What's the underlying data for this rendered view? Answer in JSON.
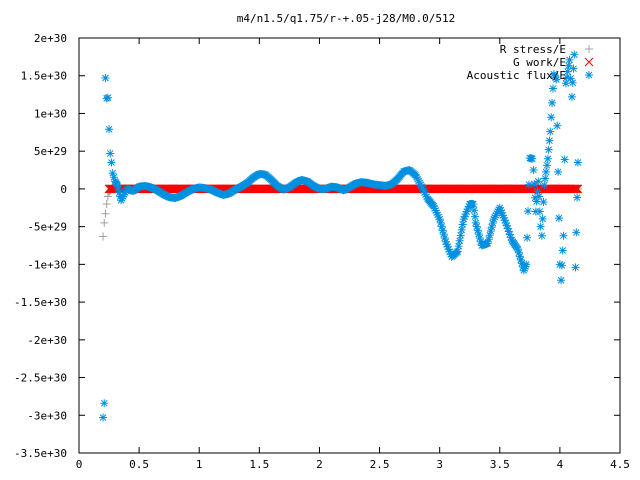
{
  "chart_data": {
    "type": "scatter",
    "title": "m4/n1.5/q1.75/r-+.05-j28/M0.0/512",
    "xlabel": "",
    "ylabel": "",
    "xlim": [
      0,
      4.5
    ],
    "ylim": [
      -3.5e+30,
      2e+30
    ],
    "x_ticks": [
      0,
      0.5,
      1,
      1.5,
      2,
      2.5,
      3,
      3.5,
      4,
      4.5
    ],
    "x_tick_labels": [
      "0",
      "0.5",
      "1",
      "1.5",
      "2",
      "2.5",
      "3",
      "3.5",
      "4",
      "4.5"
    ],
    "y_ticks": [
      2e+30,
      1.5e+30,
      1e+30,
      5e+29,
      0,
      -5e+29,
      -1e+30,
      -1.5e+30,
      -2e+30,
      -2.5e+30,
      -3e+30,
      -3.5e+30
    ],
    "y_tick_labels": [
      "2e+30",
      "1.5e+30",
      "1e+30",
      "5e+29",
      "0",
      "-5e+29",
      "-1e+30",
      "-1.5e+30",
      "-2e+30",
      "-2.5e+30",
      "-3e+30",
      "-3.5e+30"
    ],
    "grid": false,
    "legend_position": "top-right",
    "series": [
      {
        "name": "R stress/E",
        "marker": "+",
        "color": "#a0a0a0",
        "points": [
          [
            0.2,
            -6.3e+29
          ],
          [
            0.21,
            -4.5e+29
          ],
          [
            0.22,
            -3.3e+29
          ],
          [
            0.23,
            -2e+29
          ],
          [
            0.24,
            -1e+29
          ],
          [
            0.25,
            -4e+28
          ],
          [
            0.27,
            0
          ],
          [
            0.5,
            0
          ],
          [
            1.0,
            0
          ],
          [
            1.5,
            0
          ],
          [
            2.0,
            0
          ],
          [
            2.5,
            0
          ],
          [
            3.0,
            0
          ],
          [
            3.5,
            0
          ],
          [
            4.0,
            0
          ],
          [
            4.15,
            0
          ]
        ]
      },
      {
        "name": "G work/E",
        "marker": "x",
        "color": "#ff0000",
        "points": [
          [
            0.25,
            0
          ],
          [
            0.5,
            0
          ],
          [
            0.75,
            0
          ],
          [
            1.0,
            0
          ],
          [
            1.25,
            0
          ],
          [
            1.5,
            0
          ],
          [
            1.75,
            0
          ],
          [
            2.0,
            0
          ],
          [
            2.25,
            0
          ],
          [
            2.5,
            0
          ],
          [
            2.75,
            0
          ],
          [
            3.0,
            0
          ],
          [
            3.25,
            0
          ],
          [
            3.5,
            0
          ],
          [
            3.75,
            0
          ],
          [
            4.0,
            0
          ],
          [
            4.15,
            0
          ]
        ]
      },
      {
        "name": "Acoustic flux/E",
        "marker": "*",
        "color": "#0090e0",
        "points": [
          [
            0.2,
            -3.03e+30
          ],
          [
            0.21,
            -2.84e+30
          ],
          [
            0.22,
            1.47e+30
          ],
          [
            0.23,
            1.2e+30
          ],
          [
            0.24,
            1.21e+30
          ],
          [
            0.25,
            7.9e+29
          ],
          [
            0.26,
            4.7e+29
          ],
          [
            0.27,
            3.5e+29
          ],
          [
            0.28,
            2.1e+29
          ],
          [
            0.3,
            1e+29
          ],
          [
            0.32,
            5e+28
          ],
          [
            0.35,
            -1.5e+29
          ],
          [
            0.4,
            0
          ],
          [
            0.45,
            -3e+28
          ],
          [
            0.5,
            3e+28
          ],
          [
            0.55,
            4e+28
          ],
          [
            0.6,
            2e+28
          ],
          [
            0.65,
            -2e+28
          ],
          [
            0.7,
            -7e+28
          ],
          [
            0.75,
            -1.1e+29
          ],
          [
            0.8,
            -1.2e+29
          ],
          [
            0.85,
            -9e+28
          ],
          [
            0.9,
            -4e+28
          ],
          [
            0.95,
            0
          ],
          [
            1.0,
            2e+28
          ],
          [
            1.05,
            1e+28
          ],
          [
            1.1,
            -1e+28
          ],
          [
            1.15,
            -5e+28
          ],
          [
            1.2,
            -8e+28
          ],
          [
            1.25,
            -6e+28
          ],
          [
            1.3,
            -1e+28
          ],
          [
            1.35,
            3e+28
          ],
          [
            1.4,
            8e+28
          ],
          [
            1.45,
            1.5e+29
          ],
          [
            1.5,
            2e+29
          ],
          [
            1.55,
            1.9e+29
          ],
          [
            1.6,
            1.2e+29
          ],
          [
            1.65,
            4e+28
          ],
          [
            1.7,
            -1e+28
          ],
          [
            1.75,
            2e+28
          ],
          [
            1.8,
            8e+28
          ],
          [
            1.85,
            1.2e+29
          ],
          [
            1.9,
            1e+29
          ],
          [
            1.95,
            4e+28
          ],
          [
            2.0,
            0
          ],
          [
            2.05,
            0
          ],
          [
            2.1,
            3e+28
          ],
          [
            2.15,
            2e+28
          ],
          [
            2.2,
            -2e+28
          ],
          [
            2.25,
            2e+28
          ],
          [
            2.3,
            7e+28
          ],
          [
            2.35,
            9e+28
          ],
          [
            2.4,
            8e+28
          ],
          [
            2.45,
            6e+28
          ],
          [
            2.5,
            5e+28
          ],
          [
            2.55,
            4e+28
          ],
          [
            2.6,
            6e+28
          ],
          [
            2.65,
            1.3e+29
          ],
          [
            2.7,
            2.3e+29
          ],
          [
            2.75,
            2.5e+29
          ],
          [
            2.8,
            1.8e+29
          ],
          [
            2.85,
            3e+28
          ],
          [
            2.9,
            -1.3e+29
          ],
          [
            2.95,
            -2.3e+29
          ],
          [
            3.0,
            -4e+29
          ],
          [
            3.05,
            -7e+29
          ],
          [
            3.1,
            -9e+29
          ],
          [
            3.15,
            -8.3e+29
          ],
          [
            3.2,
            -4e+29
          ],
          [
            3.25,
            -2e+29
          ],
          [
            3.28,
            -2e+29
          ],
          [
            3.3,
            -4.5e+29
          ],
          [
            3.35,
            -7.5e+29
          ],
          [
            3.4,
            -7.2e+29
          ],
          [
            3.45,
            -4e+29
          ],
          [
            3.5,
            -2.5e+29
          ],
          [
            3.55,
            -4.5e+29
          ],
          [
            3.6,
            -6.8e+29
          ],
          [
            3.65,
            -8e+29
          ],
          [
            3.7,
            -1.08e+30
          ],
          [
            3.72,
            -1e+30
          ],
          [
            3.75,
            4.1e+29
          ],
          [
            3.77,
            4e+29
          ],
          [
            3.78,
            2.5e+29
          ],
          [
            3.8,
            -3e+29
          ],
          [
            3.82,
            1e+29
          ],
          [
            3.84,
            -5e+29
          ],
          [
            3.85,
            -6.2e+29
          ],
          [
            3.87,
            5e+28
          ],
          [
            3.9,
            4e+29
          ],
          [
            3.92,
            7.6e+29
          ],
          [
            3.95,
            1.52e+30
          ],
          [
            3.97,
            1.45e+30
          ],
          [
            4.0,
            -1e+30
          ],
          [
            4.01,
            -1.21e+30
          ],
          [
            4.03,
            -6.2e+29
          ],
          [
            4.05,
            1.4e+30
          ],
          [
            4.08,
            1.71e+30
          ],
          [
            4.1,
            1.22e+30
          ],
          [
            4.12,
            1.78e+30
          ],
          [
            4.13,
            -1.04e+30
          ],
          [
            4.15,
            3.5e+29
          ]
        ]
      }
    ]
  }
}
